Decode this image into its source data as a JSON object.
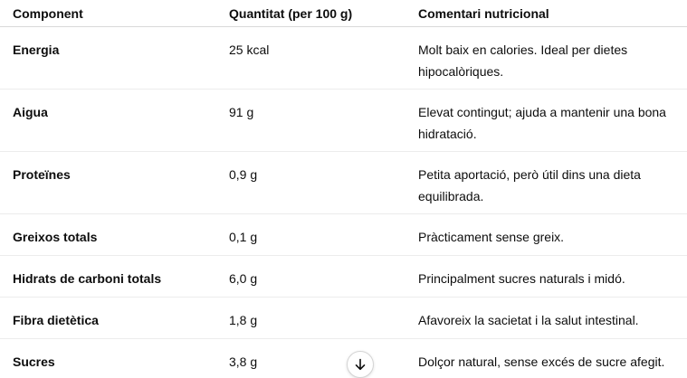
{
  "table": {
    "headers": [
      "Component",
      "Quantitat (per 100 g)",
      "Comentari nutricional"
    ],
    "rows": [
      {
        "component": "Energia",
        "quantity": "25 kcal",
        "comment": "Molt baix en calories. Ideal per dietes hipocalòriques."
      },
      {
        "component": "Aigua",
        "quantity": "91 g",
        "comment": "Elevat contingut; ajuda a mantenir una bona hidratació."
      },
      {
        "component": "Proteïnes",
        "quantity": "0,9 g",
        "comment": "Petita aportació, però útil dins una dieta equilibrada."
      },
      {
        "component": "Greixos totals",
        "quantity": "0,1 g",
        "comment": "Pràcticament sense greix."
      },
      {
        "component": "Hidrats de carboni totals",
        "quantity": "6,0 g",
        "comment": "Principalment sucres naturals i midó."
      },
      {
        "component": "Fibra dietètica",
        "quantity": "1,8 g",
        "comment": "Afavoreix la sacietat i la salut intestinal."
      },
      {
        "component": "Sucres",
        "quantity": "3,8 g",
        "comment": "Dolçor natural, sense excés de sucre afegit."
      }
    ]
  },
  "scroll_button": {
    "icon": "arrow-down-icon"
  }
}
